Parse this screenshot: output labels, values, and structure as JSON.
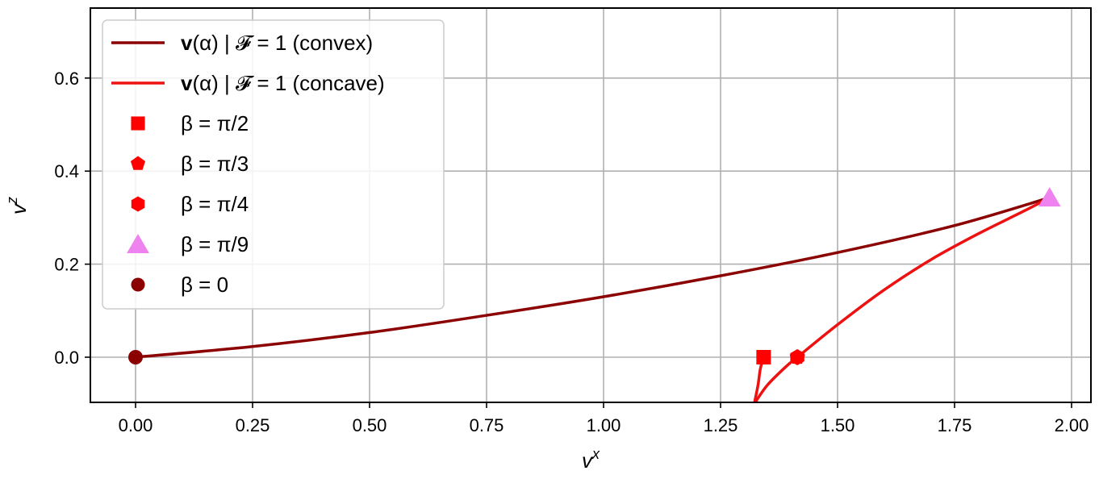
{
  "chart_data": {
    "type": "line",
    "xlabel": "v^x",
    "ylabel": "v^z",
    "xlim": [
      -0.1,
      2.05
    ],
    "ylim": [
      -0.1,
      0.75
    ],
    "grid": true,
    "legend_position": "top-left",
    "x_ticks": [
      "0.00",
      "0.25",
      "0.50",
      "0.75",
      "1.00",
      "1.25",
      "1.50",
      "1.75",
      "2.00"
    ],
    "x_tick_values": [
      0,
      0.25,
      0.5,
      0.75,
      1.0,
      1.25,
      1.5,
      1.75,
      2.0
    ],
    "y_ticks": [
      "0.0",
      "0.2",
      "0.4",
      "0.6"
    ],
    "y_tick_values": [
      0.0,
      0.2,
      0.4,
      0.6
    ],
    "series": [
      {
        "name": "v(α) | F = 1 (convex)",
        "label_bold": "v",
        "label_rest": "(α) | 𝓕 = 1 (convex)",
        "color": "#8b0000",
        "points": [
          [
            0,
            0
          ],
          [
            0.25,
            0.023
          ],
          [
            0.5,
            0.053
          ],
          [
            0.75,
            0.09
          ],
          [
            1.0,
            0.13
          ],
          [
            1.25,
            0.175
          ],
          [
            1.5,
            0.225
          ],
          [
            1.75,
            0.283
          ],
          [
            1.953,
            0.343
          ]
        ]
      },
      {
        "name": "v(α) | F = 1 (concave)",
        "label_bold": "v",
        "label_rest": "(α) | 𝓕 = 1 (concave)",
        "color": "#ee1111",
        "branches": [
          [
            [
              1.342,
              0
            ],
            [
              1.335,
              -0.025
            ],
            [
              1.33,
              -0.06
            ],
            [
              1.322,
              -0.1
            ]
          ],
          [
            [
              1.322,
              -0.1
            ],
            [
              1.35,
              -0.06
            ],
            [
              1.39,
              -0.02
            ],
            [
              1.414,
              0
            ],
            [
              1.5,
              0.07
            ],
            [
              1.6,
              0.145
            ],
            [
              1.7,
              0.21
            ],
            [
              1.8,
              0.265
            ],
            [
              1.9,
              0.315
            ],
            [
              1.953,
              0.343
            ]
          ]
        ]
      }
    ],
    "markers": [
      {
        "name": "β = π/2",
        "label": "β = π/2",
        "shape": "square",
        "color": "#ff0000",
        "x": 1.342,
        "y": 0
      },
      {
        "name": "β = π/3",
        "label": "β = π/3",
        "shape": "pentagon",
        "color": "#ff0000",
        "x": 1.414,
        "y": 0
      },
      {
        "name": "β = π/4",
        "label": "β = π/4",
        "shape": "hexagon",
        "color": "#ff0000",
        "x": 1.414,
        "y": 0
      },
      {
        "name": "β = π/9",
        "label": "β = π/9",
        "shape": "triangle",
        "color": "#ee82ee",
        "x": 1.953,
        "y": 0.343
      },
      {
        "name": "β = 0",
        "label": "β = 0",
        "shape": "circle",
        "color": "#8b0000",
        "x": 0,
        "y": 0
      }
    ]
  }
}
